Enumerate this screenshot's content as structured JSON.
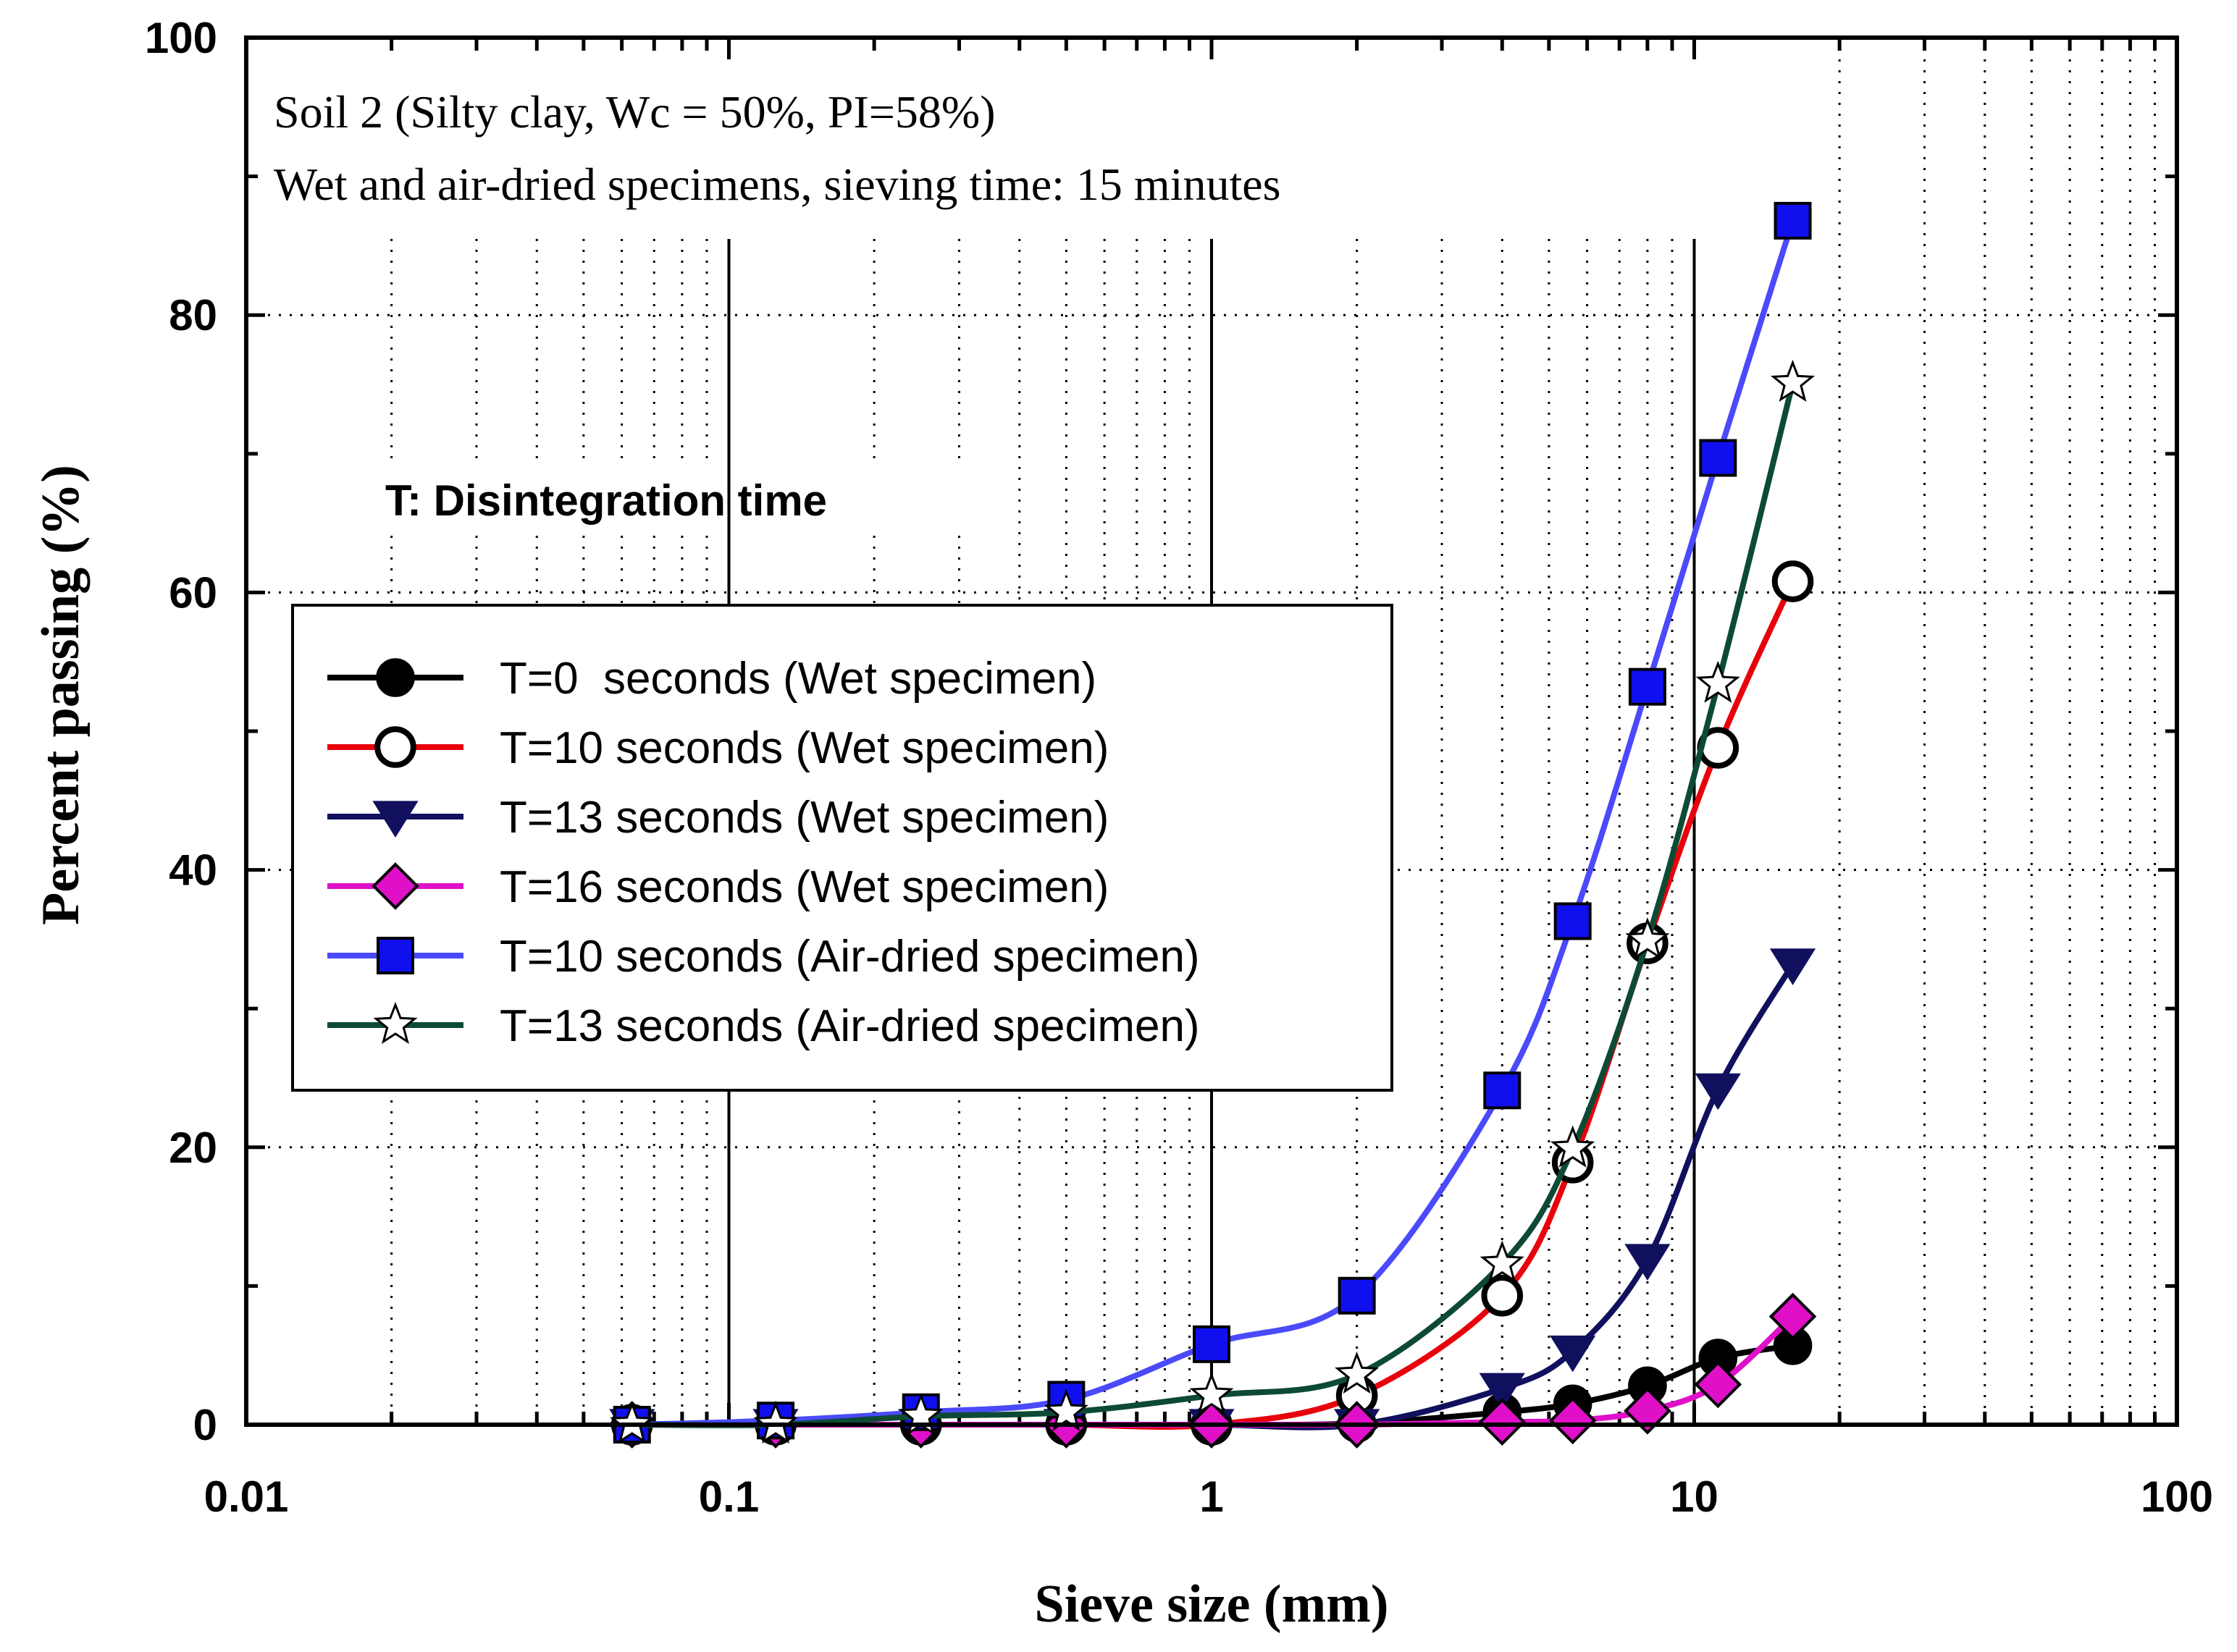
{
  "chart_data": {
    "type": "line",
    "title": "Soil 2 (Silty clay, Wc = 50%, PI=58%)",
    "subtitle": "Wet and air-dried specimens, sieving time: 15 minutes",
    "annotation": "T: Disintegration time",
    "xlabel": "Sieve size (mm)",
    "ylabel": "Percent passing  (%)",
    "xscale": "log",
    "xlim": [
      0.01,
      100
    ],
    "ylim": [
      0,
      100
    ],
    "x_tick_labels": [
      "0.01",
      "0.1",
      "1",
      "10",
      "100"
    ],
    "y_tick_labels": [
      "0",
      "20",
      "40",
      "60",
      "80",
      "100"
    ],
    "grid": "dotted",
    "legend_position": "center-left",
    "x": [
      0.063,
      0.125,
      0.25,
      0.5,
      1,
      2,
      4,
      5.6,
      8,
      11.2,
      16
    ],
    "series": [
      {
        "name": "T=0  seconds (Wet specimen)",
        "marker": "circle-filled",
        "color": "#000000",
        "marker_fill": "#000000",
        "values": [
          0,
          0,
          0,
          0,
          0,
          0.1,
          0.9,
          1.5,
          2.8,
          4.8,
          5.7
        ]
      },
      {
        "name": "T=10 seconds (Wet specimen)",
        "marker": "circle-open",
        "color": "#e8000b",
        "marker_fill": "#ffffff",
        "values": [
          0,
          0,
          0,
          0,
          0,
          2.1,
          9.3,
          18.9,
          34.7,
          48.8,
          60.8
        ]
      },
      {
        "name": "T=13 seconds (Wet specimen)",
        "marker": "triangle-down",
        "color": "#10105e",
        "marker_fill": "#10105e",
        "values": [
          0,
          0,
          0,
          0,
          0,
          0,
          2.6,
          5.3,
          11.9,
          24.2,
          33.2
        ]
      },
      {
        "name": "T=16 seconds (Wet specimen)",
        "marker": "diamond",
        "color": "#e010c8",
        "marker_fill": "#e010c8",
        "values": [
          0,
          0,
          0,
          0,
          0,
          0,
          0.2,
          0.3,
          1.0,
          2.9,
          7.8
        ]
      },
      {
        "name": "T=10 seconds (Air-dried specimen)",
        "marker": "square",
        "color": "#4a4afa",
        "marker_fill": "#1010ee",
        "values": [
          0,
          0.3,
          0.9,
          1.8,
          5.8,
          9.3,
          24.1,
          36.3,
          53.2,
          69.7,
          86.8
        ]
      },
      {
        "name": "T=13 seconds (Air-dried specimen)",
        "marker": "star",
        "color": "#0d4a36",
        "marker_fill": "#0d4a36",
        "values": [
          0,
          0,
          0.6,
          0.9,
          2.1,
          3.6,
          11.6,
          19.9,
          34.9,
          53.4,
          75.1
        ]
      }
    ]
  }
}
